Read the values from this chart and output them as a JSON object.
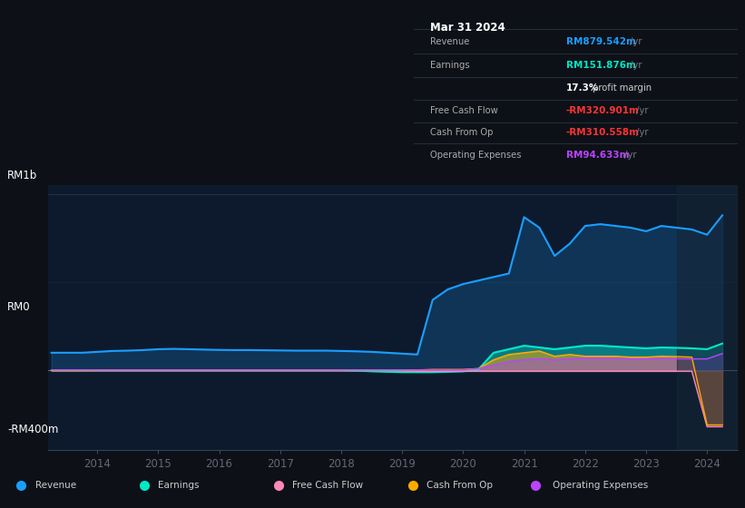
{
  "background_color": "#0d1117",
  "plot_bg_color": "#0d1a2d",
  "info_box": {
    "date": "Mar 31 2024",
    "revenue_label": "Revenue",
    "revenue_value": "RM879.542m",
    "revenue_color": "#1a9eff",
    "earnings_label": "Earnings",
    "earnings_value": "RM151.876m",
    "earnings_color": "#00e8c8",
    "profit_margin_bold": "17.3%",
    "profit_margin_rest": " profit margin",
    "fcf_label": "Free Cash Flow",
    "fcf_value": "-RM320.901m",
    "fcf_color": "#ff3333",
    "cashop_label": "Cash From Op",
    "cashop_value": "-RM310.558m",
    "cashop_color": "#ff3333",
    "opex_label": "Operating Expenses",
    "opex_value": "RM94.633m",
    "opex_color": "#bb44ff"
  },
  "colors": {
    "revenue": "#1a9eff",
    "earnings": "#00e8c8",
    "fcf": "#ff88bb",
    "cashop": "#ffaa00",
    "opex": "#bb44ff"
  },
  "legend": [
    {
      "label": "Revenue",
      "color": "#1a9eff"
    },
    {
      "label": "Earnings",
      "color": "#00e8c8"
    },
    {
      "label": "Free Cash Flow",
      "color": "#ff88bb"
    },
    {
      "label": "Cash From Op",
      "color": "#ffaa00"
    },
    {
      "label": "Operating Expenses",
      "color": "#bb44ff"
    }
  ],
  "x_years": [
    2013.25,
    2013.5,
    2013.75,
    2014.0,
    2014.25,
    2014.5,
    2014.75,
    2015.0,
    2015.25,
    2015.5,
    2015.75,
    2016.0,
    2016.25,
    2016.5,
    2016.75,
    2017.0,
    2017.25,
    2017.5,
    2017.75,
    2018.0,
    2018.25,
    2018.5,
    2018.75,
    2019.0,
    2019.25,
    2019.5,
    2019.75,
    2020.0,
    2020.25,
    2020.5,
    2020.75,
    2021.0,
    2021.25,
    2021.5,
    2021.75,
    2022.0,
    2022.25,
    2022.5,
    2022.75,
    2023.0,
    2023.25,
    2023.5,
    2023.75,
    2024.0,
    2024.25
  ],
  "revenue": [
    100,
    100,
    100,
    105,
    110,
    112,
    115,
    120,
    122,
    120,
    118,
    116,
    115,
    115,
    114,
    113,
    112,
    112,
    112,
    110,
    108,
    105,
    100,
    95,
    90,
    400,
    460,
    490,
    510,
    530,
    550,
    870,
    810,
    650,
    720,
    820,
    830,
    820,
    810,
    790,
    820,
    810,
    800,
    770,
    880
  ],
  "earnings": [
    0,
    0,
    0,
    0,
    0,
    0,
    0,
    0,
    0,
    0,
    0,
    0,
    0,
    0,
    0,
    0,
    0,
    0,
    0,
    0,
    -2,
    -5,
    -8,
    -10,
    -10,
    -10,
    -8,
    -5,
    5,
    100,
    120,
    140,
    130,
    120,
    130,
    140,
    140,
    135,
    130,
    125,
    130,
    128,
    125,
    120,
    152
  ],
  "fcf": [
    0,
    0,
    0,
    0,
    0,
    0,
    0,
    0,
    0,
    0,
    0,
    0,
    0,
    0,
    0,
    0,
    0,
    0,
    0,
    0,
    0,
    0,
    0,
    -2,
    -5,
    -5,
    -5,
    -5,
    -5,
    -5,
    -5,
    -5,
    -5,
    -5,
    -5,
    -5,
    -5,
    -5,
    -5,
    -5,
    -5,
    -5,
    -5,
    -320,
    -320
  ],
  "cashop": [
    0,
    0,
    0,
    2,
    2,
    2,
    2,
    2,
    2,
    2,
    2,
    2,
    2,
    2,
    2,
    2,
    2,
    2,
    2,
    2,
    2,
    2,
    2,
    2,
    2,
    5,
    5,
    5,
    10,
    60,
    90,
    100,
    110,
    80,
    90,
    80,
    80,
    80,
    75,
    75,
    80,
    78,
    75,
    -310,
    -310
  ],
  "opex": [
    2,
    2,
    2,
    2,
    2,
    2,
    2,
    2,
    2,
    2,
    2,
    2,
    2,
    2,
    2,
    2,
    2,
    2,
    2,
    2,
    2,
    2,
    2,
    2,
    2,
    2,
    2,
    2,
    10,
    30,
    50,
    60,
    65,
    60,
    65,
    70,
    70,
    68,
    65,
    65,
    68,
    66,
    65,
    65,
    95
  ]
}
